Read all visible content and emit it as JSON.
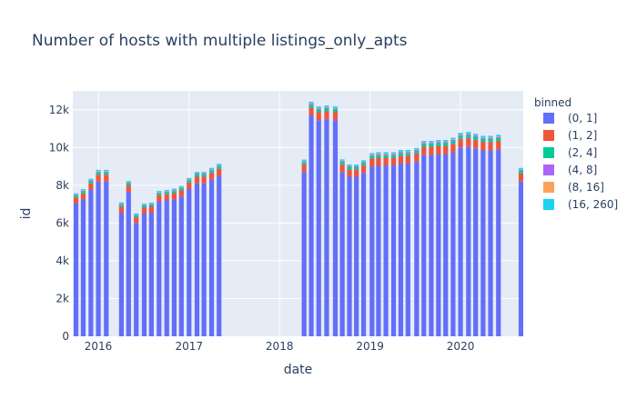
{
  "chart_data": {
    "type": "bar",
    "barmode": "stack",
    "title": "Number of hosts with multiple listings_only_apts",
    "xlabel": "date",
    "ylabel": "id",
    "ylim": [
      0,
      13000
    ],
    "y_ticks": [
      0,
      2000,
      4000,
      6000,
      8000,
      10000,
      12000
    ],
    "y_tick_labels": [
      "0",
      "2k",
      "4k",
      "6k",
      "8k",
      "10k",
      "12k"
    ],
    "x_ticks": [
      "2016-01-01",
      "2017-01-01",
      "2018-01-01",
      "2019-01-01",
      "2020-01-01"
    ],
    "x_tick_labels": [
      "2016",
      "2017",
      "2018",
      "2019",
      "2020"
    ],
    "x_range": [
      "2015-09-20",
      "2020-09-10"
    ],
    "grid": true,
    "legend_title": "binned",
    "legend_position": "right",
    "dates": [
      "2015-10-03",
      "2015-11-01",
      "2015-12-02",
      "2016-01-01",
      "2016-02-02",
      "2016-04-03",
      "2016-05-02",
      "2016-06-02",
      "2016-07-04",
      "2016-08-02",
      "2016-09-02",
      "2016-10-03",
      "2016-11-02",
      "2016-12-01",
      "2017-01-01",
      "2017-02-02",
      "2017-03-02",
      "2017-04-02",
      "2017-05-02",
      "2018-04-10",
      "2018-05-09",
      "2018-06-08",
      "2018-07-10",
      "2018-08-14",
      "2018-09-11",
      "2018-10-10",
      "2018-11-07",
      "2018-12-06",
      "2019-01-09",
      "2019-02-04",
      "2019-03-06",
      "2019-04-06",
      "2019-05-05",
      "2019-06-03",
      "2019-07-08",
      "2019-08-06",
      "2019-09-05",
      "2019-10-04",
      "2019-11-02",
      "2019-12-02",
      "2020-01-01",
      "2020-02-02",
      "2020-03-02",
      "2020-04-01",
      "2020-05-01",
      "2020-06-02",
      "2020-09-01"
    ],
    "series": [
      {
        "name": "(0, 1]",
        "color": "#636efa",
        "values": [
          7050,
          7250,
          7750,
          8200,
          8200,
          6550,
          7650,
          6000,
          6500,
          6550,
          7150,
          7200,
          7250,
          7400,
          7800,
          8100,
          8100,
          8300,
          8500,
          8700,
          11700,
          11450,
          11500,
          11450,
          8700,
          8450,
          8450,
          8650,
          9000,
          9050,
          9050,
          9050,
          9150,
          9150,
          9250,
          9600,
          9600,
          9650,
          9650,
          9750,
          10000,
          10050,
          9950,
          9850,
          9850,
          9900,
          8200
        ]
      },
      {
        "name": "(1, 2]",
        "color": "#ef553b",
        "values": [
          300,
          320,
          350,
          360,
          360,
          320,
          340,
          300,
          310,
          310,
          320,
          320,
          330,
          330,
          340,
          350,
          350,
          360,
          370,
          380,
          420,
          420,
          420,
          420,
          390,
          380,
          380,
          390,
          410,
          410,
          410,
          410,
          420,
          420,
          430,
          440,
          440,
          440,
          440,
          450,
          460,
          460,
          460,
          450,
          450,
          450,
          420
        ]
      },
      {
        "name": "(2, 4]",
        "color": "#00cc96",
        "values": [
          100,
          105,
          110,
          120,
          120,
          100,
          110,
          95,
          100,
          100,
          105,
          105,
          110,
          110,
          115,
          120,
          120,
          120,
          125,
          130,
          140,
          140,
          140,
          140,
          130,
          125,
          125,
          130,
          135,
          135,
          135,
          135,
          140,
          140,
          140,
          145,
          145,
          145,
          145,
          150,
          150,
          150,
          150,
          150,
          150,
          150,
          140
        ]
      },
      {
        "name": "(4, 8]",
        "color": "#ab63fa",
        "values": [
          40,
          42,
          45,
          48,
          48,
          40,
          44,
          38,
          40,
          40,
          42,
          42,
          44,
          44,
          46,
          48,
          48,
          48,
          50,
          52,
          58,
          58,
          58,
          58,
          52,
          50,
          50,
          52,
          54,
          54,
          54,
          54,
          56,
          56,
          56,
          58,
          58,
          58,
          58,
          60,
          60,
          60,
          60,
          60,
          60,
          60,
          56
        ]
      },
      {
        "name": "(8, 16]",
        "color": "#ffa15a",
        "values": [
          20,
          20,
          22,
          24,
          24,
          20,
          22,
          18,
          20,
          20,
          20,
          20,
          22,
          22,
          22,
          24,
          24,
          24,
          25,
          26,
          28,
          28,
          28,
          28,
          26,
          25,
          25,
          26,
          27,
          27,
          27,
          27,
          28,
          28,
          28,
          29,
          29,
          29,
          29,
          30,
          30,
          30,
          30,
          30,
          30,
          30,
          28
        ]
      },
      {
        "name": "(16, 260]",
        "color": "#19d3f3",
        "values": [
          60,
          62,
          65,
          68,
          68,
          60,
          64,
          55,
          60,
          60,
          62,
          62,
          64,
          64,
          66,
          68,
          68,
          68,
          70,
          72,
          80,
          80,
          80,
          80,
          72,
          70,
          70,
          72,
          75,
          75,
          75,
          75,
          76,
          76,
          76,
          78,
          78,
          78,
          78,
          80,
          80,
          80,
          80,
          80,
          80,
          80,
          76
        ]
      }
    ]
  }
}
